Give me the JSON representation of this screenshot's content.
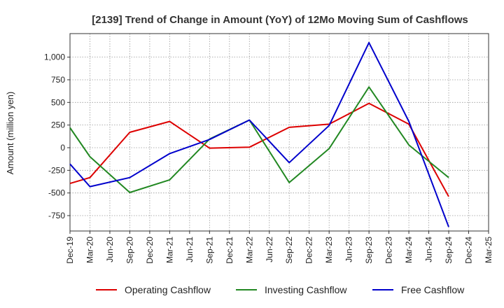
{
  "chart_data": {
    "type": "line",
    "title": "[2139]  Trend of Change in Amount (YoY) of 12Mo Moving Sum of Cashflows",
    "xlabel": "",
    "ylabel": "Amount (million yen)",
    "ylim": [
      -920,
      1260
    ],
    "yticks": [
      -750,
      -500,
      -250,
      0,
      250,
      500,
      750,
      1000
    ],
    "ytick_labels": [
      "-750",
      "-500",
      "-250",
      "0",
      "250",
      "500",
      "750",
      "1,000"
    ],
    "grid": true,
    "legend_position": "bottom",
    "categories": [
      "Dec-19",
      "Mar-20",
      "Jun-20",
      "Sep-20",
      "Dec-20",
      "Mar-21",
      "Jun-21",
      "Sep-21",
      "Dec-21",
      "Mar-22",
      "Jun-22",
      "Sep-22",
      "Dec-22",
      "Mar-23",
      "Jun-23",
      "Sep-23",
      "Dec-23",
      "Mar-24",
      "Jun-24",
      "Sep-24",
      "Dec-24",
      "Mar-25"
    ],
    "series": [
      {
        "name": "Operating Cashflow",
        "color": "#dd0000",
        "values": [
          -395,
          -330,
          null,
          170,
          null,
          290,
          null,
          -5,
          null,
          5,
          null,
          225,
          null,
          260,
          null,
          490,
          null,
          260,
          null,
          -540,
          null,
          null
        ]
      },
      {
        "name": "Investing Cashflow",
        "color": "#228822",
        "values": [
          220,
          -100,
          null,
          -495,
          null,
          -355,
          null,
          95,
          null,
          305,
          null,
          -385,
          null,
          -10,
          null,
          670,
          null,
          30,
          null,
          -330,
          null,
          null
        ]
      },
      {
        "name": "Free Cashflow",
        "color": "#0000cc",
        "values": [
          -180,
          -430,
          null,
          -330,
          null,
          -65,
          null,
          90,
          null,
          305,
          null,
          -165,
          null,
          245,
          null,
          1160,
          null,
          290,
          null,
          -875,
          null,
          null
        ]
      }
    ]
  }
}
